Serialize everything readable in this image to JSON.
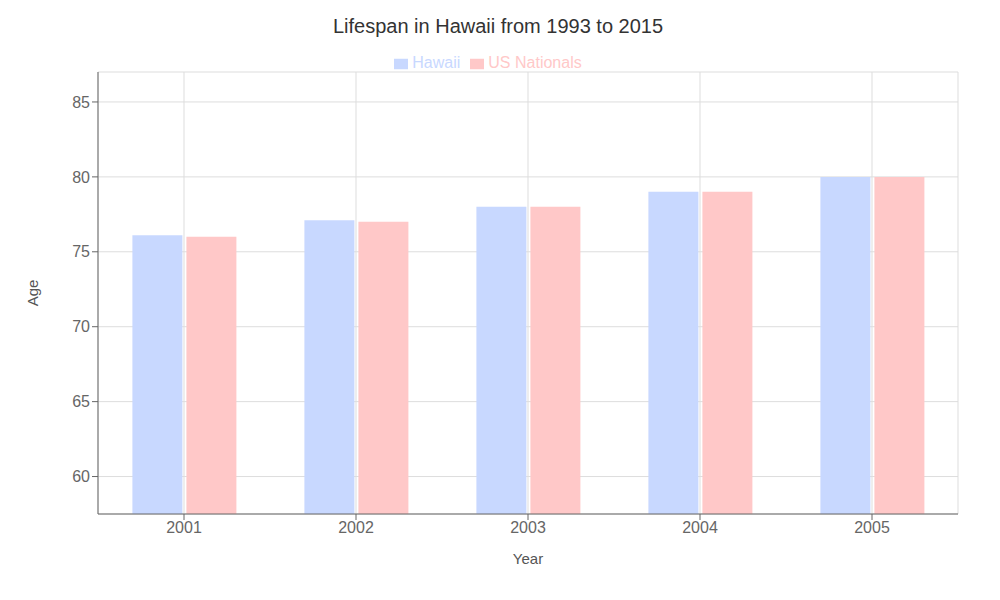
{
  "chart_data": {
    "type": "bar",
    "title": "Lifespan in Hawaii from 1993 to 2015",
    "x_label": "Year",
    "y_label": "Age",
    "categories": [
      "2001",
      "2002",
      "2003",
      "2004",
      "2005"
    ],
    "series": [
      {
        "name": "Hawaii",
        "color": "#c8d8ff",
        "values": [
          76.1,
          77.1,
          78.0,
          79.0,
          80.0
        ]
      },
      {
        "name": "US Nationals",
        "color": "#ffc8c8",
        "values": [
          76.0,
          77.0,
          78.0,
          79.0,
          80.0
        ]
      }
    ],
    "ylim": [
      57.5,
      87
    ],
    "yticks": [
      60,
      65,
      70,
      75,
      80,
      85
    ],
    "grid": true,
    "legend": "top"
  }
}
